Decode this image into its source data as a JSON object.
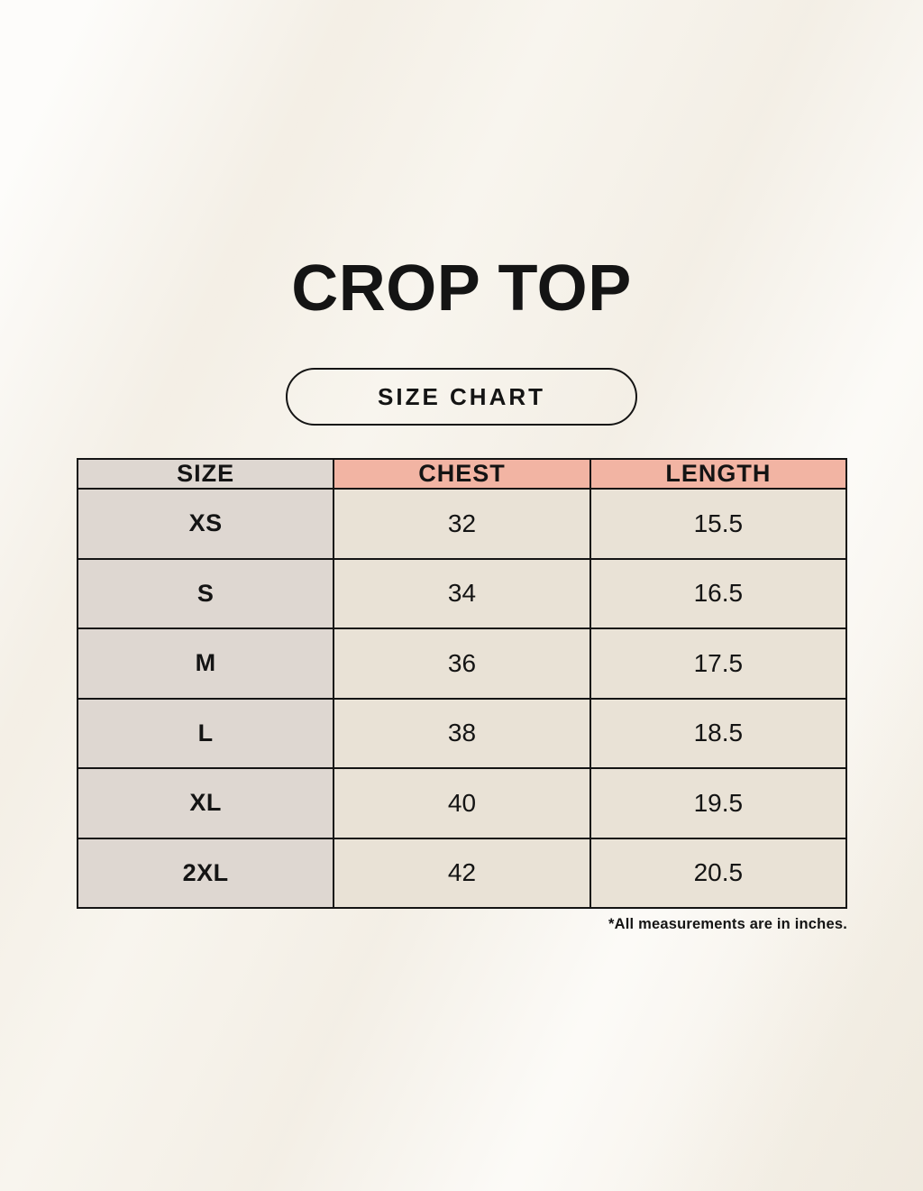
{
  "page": {
    "title": "CROP TOP",
    "badge_label": "SIZE CHART",
    "footnote": "*All measurements are in inches."
  },
  "table": {
    "columns": [
      "SIZE",
      "CHEST",
      "LENGTH"
    ],
    "rows": [
      {
        "size": "XS",
        "chest": "32",
        "length": "15.5"
      },
      {
        "size": "S",
        "chest": "34",
        "length": "16.5"
      },
      {
        "size": "M",
        "chest": "36",
        "length": "17.5"
      },
      {
        "size": "L",
        "chest": "38",
        "length": "18.5"
      },
      {
        "size": "XL",
        "chest": "40",
        "length": "19.5"
      },
      {
        "size": "2XL",
        "chest": "42",
        "length": "20.5"
      }
    ]
  },
  "chart_data": {
    "type": "table",
    "title": "CROP TOP",
    "subtitle": "SIZE CHART",
    "columns": [
      "SIZE",
      "CHEST",
      "LENGTH"
    ],
    "units": "inches",
    "rows": [
      [
        "XS",
        32,
        15.5
      ],
      [
        "S",
        34,
        16.5
      ],
      [
        "M",
        36,
        17.5
      ],
      [
        "L",
        38,
        18.5
      ],
      [
        "XL",
        40,
        19.5
      ],
      [
        "2XL",
        42,
        20.5
      ]
    ],
    "note": "*All measurements are in inches."
  },
  "colors": {
    "background": "#f8f5ee",
    "header_pink": "#f2b4a3",
    "size_column_gray": "#ded7d1",
    "cell_cream": "#e9e2d6",
    "ink_black": "#141414"
  }
}
